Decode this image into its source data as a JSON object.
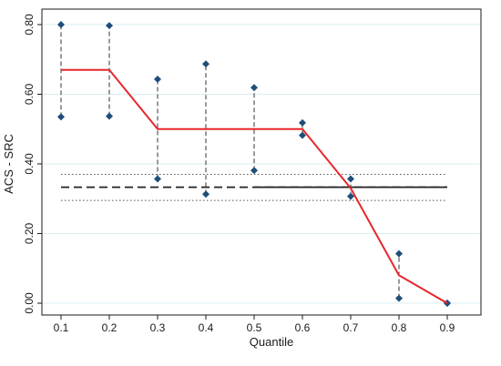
{
  "chart_data": {
    "type": "line",
    "title": "",
    "xlabel": "Quantile",
    "ylabel": "ACS - SRC",
    "xlim": [
      0.1,
      0.9
    ],
    "ylim": [
      0.0,
      0.8
    ],
    "x_ticks": [
      0.1,
      0.2,
      0.3,
      0.4,
      0.5,
      0.6,
      0.7,
      0.8,
      0.9
    ],
    "x_tick_labels": [
      "0.1",
      "0.2",
      "0.3",
      "0.4",
      "0.5",
      "0.6",
      "0.7",
      "0.8",
      "0.9"
    ],
    "y_ticks": [
      0.0,
      0.2,
      0.4,
      0.6,
      0.8
    ],
    "y_tick_labels": [
      "0.00",
      "0.20",
      "0.40",
      "0.60",
      "0.80"
    ],
    "grid": "horizontal",
    "series": [
      {
        "values": [
          0.67,
          0.67,
          0.5,
          0.5,
          0.5,
          0.5,
          0.33,
          0.08,
          0.0
        ],
        "color": "#e8262c"
      }
    ],
    "intervals": [
      {
        "x": 0.1,
        "lower": 0.535,
        "upper": 0.8
      },
      {
        "x": 0.2,
        "lower": 0.537,
        "upper": 0.797
      },
      {
        "x": 0.3,
        "lower": 0.357,
        "upper": 0.643
      },
      {
        "x": 0.4,
        "lower": 0.313,
        "upper": 0.687
      },
      {
        "x": 0.5,
        "lower": 0.381,
        "upper": 0.619
      },
      {
        "x": 0.6,
        "lower": 0.482,
        "upper": 0.518
      },
      {
        "x": 0.7,
        "lower": 0.307,
        "upper": 0.357
      },
      {
        "x": 0.8,
        "lower": 0.014,
        "upper": 0.142
      },
      {
        "x": 0.9,
        "lower": 0.0,
        "upper": 0.0
      }
    ],
    "interval_color": "#1f4e79",
    "reference_lines": [
      {
        "y": 0.333,
        "style": "dashed",
        "x_from": 0.1,
        "x_to": 0.9,
        "color": "#222222"
      },
      {
        "y": 0.333,
        "style": "solid",
        "x_from": 0.5,
        "x_to": 0.9,
        "color": "#222222"
      },
      {
        "y": 0.37,
        "style": "dotted",
        "x_from": 0.1,
        "x_to": 0.9,
        "color": "#555555"
      },
      {
        "y": 0.295,
        "style": "dotted",
        "x_from": 0.1,
        "x_to": 0.9,
        "color": "#555555"
      }
    ]
  }
}
